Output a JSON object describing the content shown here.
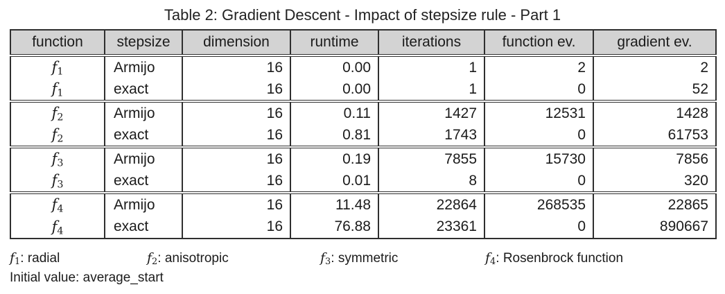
{
  "page": {
    "title": "Table 2: Gradient Descent - Impact of stepsize rule - Part 1"
  },
  "colors": {
    "header_bg": "#d3d3d3",
    "border": "#2f2f2f",
    "text": "#1b1b1b"
  },
  "table": {
    "headers": [
      {
        "key": "function",
        "label": "function"
      },
      {
        "key": "stepsize",
        "label": "stepsize"
      },
      {
        "key": "dimension",
        "label": "dimension"
      },
      {
        "key": "runtime",
        "label": "runtime"
      },
      {
        "key": "iterations",
        "label": "iterations"
      },
      {
        "key": "function_ev",
        "label": "function ev."
      },
      {
        "key": "gradient_ev",
        "label": "gradient ev."
      }
    ],
    "groups": [
      {
        "rows": [
          {
            "function_base": "f",
            "function_sub": "1",
            "stepsize": "Armijo",
            "dimension": "16",
            "runtime": "0.00",
            "iterations": "1",
            "function_ev": "2",
            "gradient_ev": "2"
          },
          {
            "function_base": "f",
            "function_sub": "1",
            "stepsize": "exact",
            "dimension": "16",
            "runtime": "0.00",
            "iterations": "1",
            "function_ev": "0",
            "gradient_ev": "52"
          }
        ]
      },
      {
        "rows": [
          {
            "function_base": "f",
            "function_sub": "2",
            "stepsize": "Armijo",
            "dimension": "16",
            "runtime": "0.11",
            "iterations": "1427",
            "function_ev": "12531",
            "gradient_ev": "1428"
          },
          {
            "function_base": "f",
            "function_sub": "2",
            "stepsize": "exact",
            "dimension": "16",
            "runtime": "0.81",
            "iterations": "1743",
            "function_ev": "0",
            "gradient_ev": "61753"
          }
        ]
      },
      {
        "rows": [
          {
            "function_base": "f",
            "function_sub": "3",
            "stepsize": "Armijo",
            "dimension": "16",
            "runtime": "0.19",
            "iterations": "7855",
            "function_ev": "15730",
            "gradient_ev": "7856"
          },
          {
            "function_base": "f",
            "function_sub": "3",
            "stepsize": "exact",
            "dimension": "16",
            "runtime": "0.01",
            "iterations": "8",
            "function_ev": "0",
            "gradient_ev": "320"
          }
        ]
      },
      {
        "rows": [
          {
            "function_base": "f",
            "function_sub": "4",
            "stepsize": "Armijo",
            "dimension": "16",
            "runtime": "11.48",
            "iterations": "22864",
            "function_ev": "268535",
            "gradient_ev": "22865"
          },
          {
            "function_base": "f",
            "function_sub": "4",
            "stepsize": "exact",
            "dimension": "16",
            "runtime": "76.88",
            "iterations": "23361",
            "function_ev": "0",
            "gradient_ev": "890667"
          }
        ]
      }
    ]
  },
  "legend": {
    "separator": ": ",
    "items": [
      {
        "base": "f",
        "sub": "1",
        "desc": "radial"
      },
      {
        "base": "f",
        "sub": "2",
        "desc": "anisotropic"
      },
      {
        "base": "f",
        "sub": "3",
        "desc": "symmetric"
      },
      {
        "base": "f",
        "sub": "4",
        "desc": "Rosenbrock function"
      }
    ],
    "initial_value_label": "Initial value:",
    "initial_value": "average_start"
  }
}
